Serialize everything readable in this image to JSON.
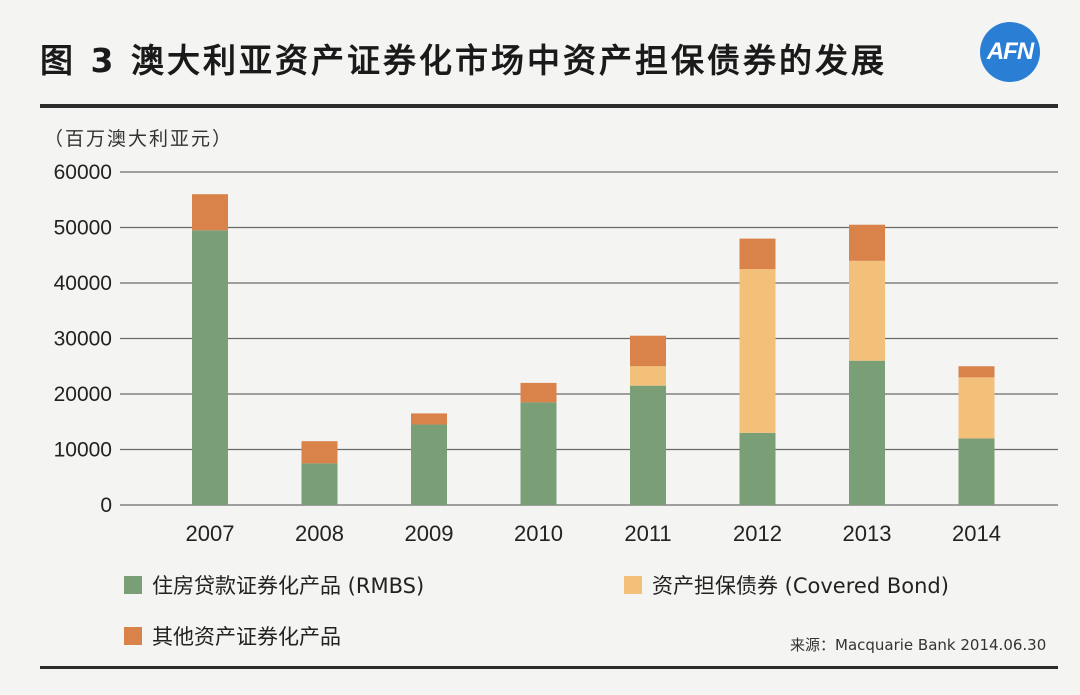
{
  "header": {
    "title": "图 3   澳大利亚资产证券化市场中资产担保债券的发展",
    "logo_text": "AFN"
  },
  "source": "来源：Macquarie Bank 2014.06.30",
  "chart_data": {
    "type": "bar",
    "stacked": true,
    "ylabel": "（百万澳大利亚元）",
    "ylim": [
      0,
      60000
    ],
    "yticks": [
      0,
      10000,
      20000,
      30000,
      40000,
      50000,
      60000
    ],
    "grid": true,
    "legend_position": "bottom",
    "categories": [
      "2007",
      "2008",
      "2009",
      "2010",
      "2011",
      "2012",
      "2013",
      "2014"
    ],
    "series": [
      {
        "name": "住房贷款证券化产品 (RMBS)",
        "color": "#7a9e76",
        "values": [
          49500,
          7500,
          14500,
          18500,
          21500,
          13000,
          26000,
          12000
        ]
      },
      {
        "name": "资产担保债券 (Covered Bond)",
        "color": "#f3c07a",
        "values": [
          0,
          0,
          0,
          0,
          3500,
          29500,
          18000,
          11000
        ]
      },
      {
        "name": "其他资产证券化产品",
        "color": "#d9824a",
        "values": [
          6500,
          4000,
          2000,
          3500,
          5500,
          5500,
          6500,
          2000
        ]
      }
    ]
  }
}
